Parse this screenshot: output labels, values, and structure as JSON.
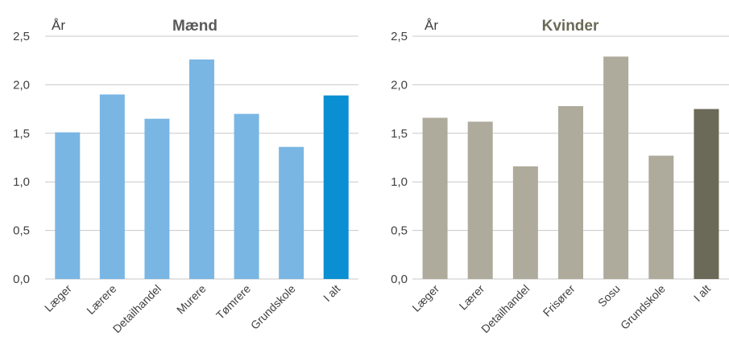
{
  "chart_data": [
    {
      "type": "bar",
      "title": "Mænd",
      "ylabel": "År",
      "ylim": [
        0,
        2.5
      ],
      "yticks": [
        "0,0",
        "0,5",
        "1,0",
        "1,5",
        "2,0",
        "2,5"
      ],
      "categories": [
        "Læger",
        "Lærere",
        "Detailhandel",
        "Murere",
        "Tømrere",
        "Grundskole",
        "I alt"
      ],
      "values": [
        1.51,
        1.9,
        1.65,
        2.26,
        1.7,
        1.36,
        1.89
      ],
      "colors": {
        "bar": "#7ab6e4",
        "total": "#0a8fd2",
        "title": "#595959"
      },
      "grid": true
    },
    {
      "type": "bar",
      "title": "Kvinder",
      "ylabel": "År",
      "ylim": [
        0,
        2.5
      ],
      "yticks": [
        "0,0",
        "0,5",
        "1,0",
        "1,5",
        "2,0",
        "2,5"
      ],
      "categories": [
        "Læger",
        "Lærer",
        "Detailhandel",
        "Frisører",
        "Sosu",
        "Grundskole",
        "I alt"
      ],
      "values": [
        1.66,
        1.62,
        1.16,
        1.78,
        2.29,
        1.27,
        1.75
      ],
      "colors": {
        "bar": "#aeab9c",
        "total": "#6b6a58",
        "title": "#6b6a58"
      },
      "grid": true
    }
  ]
}
